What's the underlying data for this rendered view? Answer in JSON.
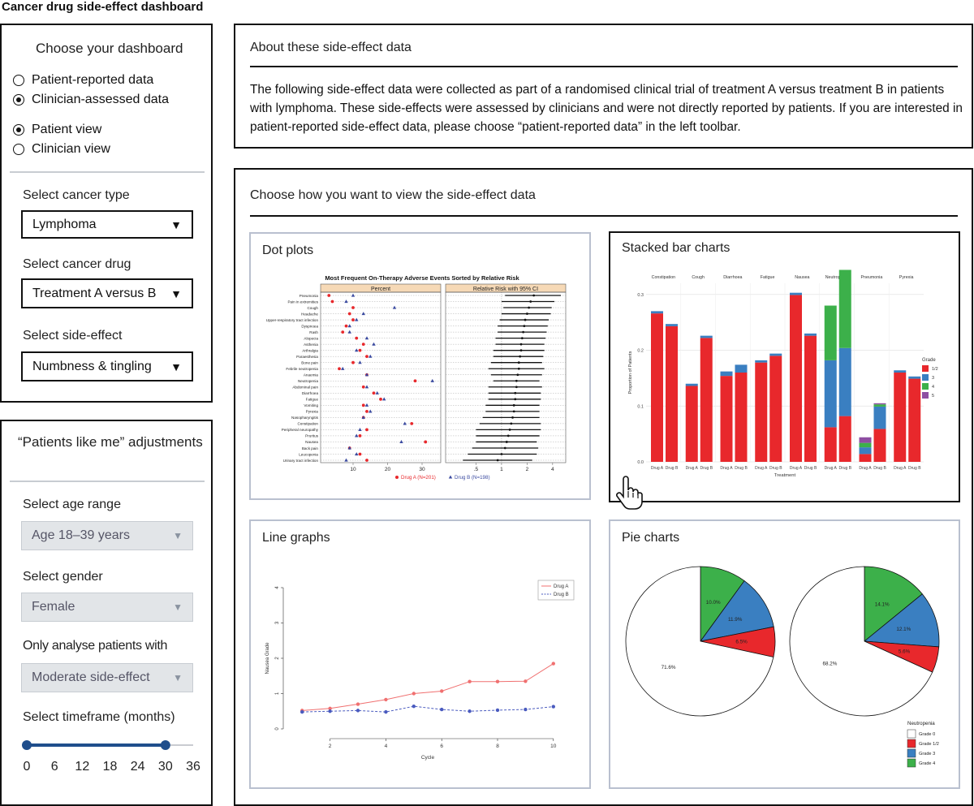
{
  "app": {
    "title": "Cancer drug side-effect dashboard"
  },
  "sidebar": {
    "heading": "Choose your dashboard",
    "data_options": [
      {
        "label": "Patient-reported data",
        "selected": false
      },
      {
        "label": "Clinician-assessed data",
        "selected": true
      }
    ],
    "view_options": [
      {
        "label": "Patient view",
        "selected": true
      },
      {
        "label": "Clinician view",
        "selected": false
      }
    ],
    "cancer_type": {
      "label": "Select cancer type",
      "value": "Lymphoma"
    },
    "cancer_drug": {
      "label": "Select cancer drug",
      "value": "Treatment A versus B"
    },
    "side_effect": {
      "label": "Select side-effect",
      "value": "Numbness & tingling"
    }
  },
  "patients_like_me": {
    "heading": "“Patients like me” adjustments",
    "age": {
      "label": "Select age range",
      "value": "Age 18–39 years"
    },
    "gender": {
      "label": "Select gender",
      "value": "Female"
    },
    "analyse": {
      "label": "Only analyse patients with",
      "value": "Moderate side-effect"
    },
    "timeframe": {
      "label": "Select timeframe (months)",
      "ticks": [
        "0",
        "6",
        "12",
        "18",
        "24",
        "30",
        "36"
      ],
      "range": [
        0,
        30
      ]
    }
  },
  "about": {
    "heading": "About these side-effect data",
    "text": "The following side-effect data were collected as part of a randomised clinical trial of treatment A versus treatment B in patients with lymphoma. These side-effects were assessed by clinicians and were not directly reported by patients. If you are interested in patient-reported side-effect data, please choose “patient-reported data” in the left toolbar."
  },
  "view_choice": {
    "heading": "Choose how you want to view the side-effect data"
  },
  "panels": {
    "dot": "Dot plots",
    "bar": "Stacked bar charts",
    "line": "Line graphs",
    "pie": "Pie charts"
  },
  "colors": {
    "red": "#e8282c",
    "blue": "#3a7fc1",
    "green": "#3cb04a",
    "purple": "#8e4ea2",
    "drugB": "#3a4aa0"
  },
  "chart_data": [
    {
      "type": "scatter",
      "title": "Most Frequent On-Therapy Adverse Events Sorted by Relative Risk",
      "panels": [
        "Percent",
        "Relative Risk with 95% CI"
      ],
      "percent_ticks": [
        "10",
        "20",
        "30"
      ],
      "rr_ticks": [
        ".5",
        "1",
        "2",
        "4"
      ],
      "legend": [
        "Drug A (N=201)",
        "Drug B (N=198)"
      ],
      "events": [
        "Pneumonia",
        "Pain in extremities",
        "Cough",
        "Headache",
        "Upper-respiratory tract infection",
        "Dyspnoea",
        "Rash",
        "Alopecia",
        "Asthenia",
        "Arthralgia",
        "Paraesthesia",
        "Bone pain",
        "Febrile neutropenia",
        "Anaemia",
        "Neutropenia",
        "Abdominal pain",
        "Diarrhoea",
        "Fatigue",
        "Vomiting",
        "Pyrexia",
        "Nasopharyngitis",
        "Constipation",
        "Peripheral neuropathy",
        "Pruritus",
        "Nausea",
        "Back pain",
        "Leucopenia",
        "Urinary tract infection"
      ],
      "drugA": [
        3,
        4,
        10,
        9,
        10,
        8,
        7,
        11,
        13,
        12,
        14,
        10,
        6,
        14,
        28,
        13,
        16,
        18,
        13,
        14,
        13,
        27,
        14,
        12,
        31,
        9,
        12,
        14
      ],
      "drugB": [
        10,
        8,
        22,
        13,
        11,
        9,
        9,
        14,
        16,
        11,
        15,
        12,
        7,
        14,
        33,
        14,
        17,
        19,
        14,
        15,
        13,
        25,
        12,
        11,
        24,
        9,
        11,
        8
      ],
      "rr": [
        2.4,
        2.2,
        2.1,
        2.0,
        1.9,
        1.85,
        1.8,
        1.75,
        1.7,
        1.7,
        1.65,
        1.6,
        1.6,
        1.55,
        1.5,
        1.5,
        1.45,
        1.45,
        1.4,
        1.4,
        1.35,
        1.3,
        1.25,
        1.2,
        1.15,
        1.1,
        1.0,
        0.9
      ],
      "rr_lo": [
        1.1,
        1.0,
        1.05,
        1.0,
        0.95,
        0.9,
        0.9,
        0.85,
        0.85,
        0.8,
        0.8,
        0.75,
        0.7,
        0.75,
        0.8,
        0.7,
        0.7,
        0.7,
        0.65,
        0.65,
        0.6,
        0.55,
        0.5,
        0.5,
        0.5,
        0.45,
        0.4,
        0.35
      ],
      "rr_hi": [
        5.0,
        4.2,
        3.9,
        3.8,
        3.6,
        3.5,
        3.4,
        3.3,
        3.2,
        3.2,
        3.1,
        3.0,
        3.2,
        3.0,
        2.8,
        3.0,
        2.9,
        2.9,
        2.8,
        2.8,
        2.8,
        2.9,
        2.9,
        2.8,
        2.6,
        2.7,
        2.6,
        2.3
      ]
    },
    {
      "type": "bar",
      "title": "",
      "facets": [
        "Constipation",
        "Cough",
        "Diarrhoea",
        "Fatigue",
        "Nausea",
        "Neutropenia",
        "Pneumonia",
        "Pyrexia"
      ],
      "categories": [
        "Drug A",
        "Drug B"
      ],
      "xlabel": "Treatment",
      "ylabel": "Proportion of Patients",
      "ylim": [
        0,
        0.3
      ],
      "yticks": [
        "0.0",
        "0.1",
        "0.2",
        "0.3"
      ],
      "legend_title": "Grade",
      "series_names": [
        "1/2",
        "3",
        "4",
        "5"
      ],
      "data": [
        [
          [
            0.266,
            0.004,
            0,
            0
          ],
          [
            0.243,
            0.004,
            0,
            0
          ]
        ],
        [
          [
            0.136,
            0.004,
            0,
            0
          ],
          [
            0.222,
            0.004,
            0,
            0
          ]
        ],
        [
          [
            0.154,
            0.008,
            0,
            0
          ],
          [
            0.16,
            0.014,
            0,
            0
          ]
        ],
        [
          [
            0.178,
            0.004,
            0,
            0
          ],
          [
            0.19,
            0.004,
            0,
            0
          ]
        ],
        [
          [
            0.299,
            0.004,
            0,
            0
          ],
          [
            0.226,
            0.004,
            0,
            0
          ]
        ],
        [
          [
            0.062,
            0.12,
            0.098,
            0
          ],
          [
            0.082,
            0.122,
            0.14,
            0
          ]
        ],
        [
          [
            0.014,
            0.012,
            0.008,
            0.01
          ],
          [
            0.059,
            0.04,
            0.004,
            0.002
          ]
        ],
        [
          [
            0.16,
            0.004,
            0,
            0
          ],
          [
            0.149,
            0.004,
            0,
            0
          ]
        ]
      ]
    },
    {
      "type": "line",
      "title": "",
      "xlabel": "Cycle",
      "ylabel": "Nausea Grade",
      "xlim": [
        1,
        10
      ],
      "ylim": [
        0,
        4
      ],
      "xticks": [
        "2",
        "4",
        "6",
        "8",
        "10"
      ],
      "yticks": [
        "0",
        "1",
        "2",
        "3",
        "4"
      ],
      "x": [
        1,
        2,
        3,
        4,
        5,
        6,
        7,
        8,
        9,
        10
      ],
      "series": [
        {
          "name": "Drug A",
          "values": [
            0.52,
            0.58,
            0.7,
            0.83,
            1.0,
            1.07,
            1.34,
            1.34,
            1.35,
            1.85
          ]
        },
        {
          "name": "Drug B",
          "values": [
            0.48,
            0.5,
            0.52,
            0.48,
            0.64,
            0.55,
            0.5,
            0.53,
            0.55,
            0.63
          ]
        }
      ]
    },
    {
      "type": "pie",
      "title": "",
      "legend_title": "Neutropenia",
      "legend": [
        "Grade 0",
        "Grade 1/2",
        "Grade 3",
        "Grade 4"
      ],
      "pies": [
        {
          "values": [
            71.6,
            6.5,
            11.9,
            10.0
          ],
          "labels": [
            "71.6%",
            "6.5%",
            "11.9%",
            "10.0%"
          ]
        },
        {
          "values": [
            68.2,
            5.6,
            12.1,
            14.1
          ],
          "labels": [
            "68.2%",
            "5.6%",
            "12.1%",
            "14.1%"
          ]
        }
      ]
    }
  ]
}
